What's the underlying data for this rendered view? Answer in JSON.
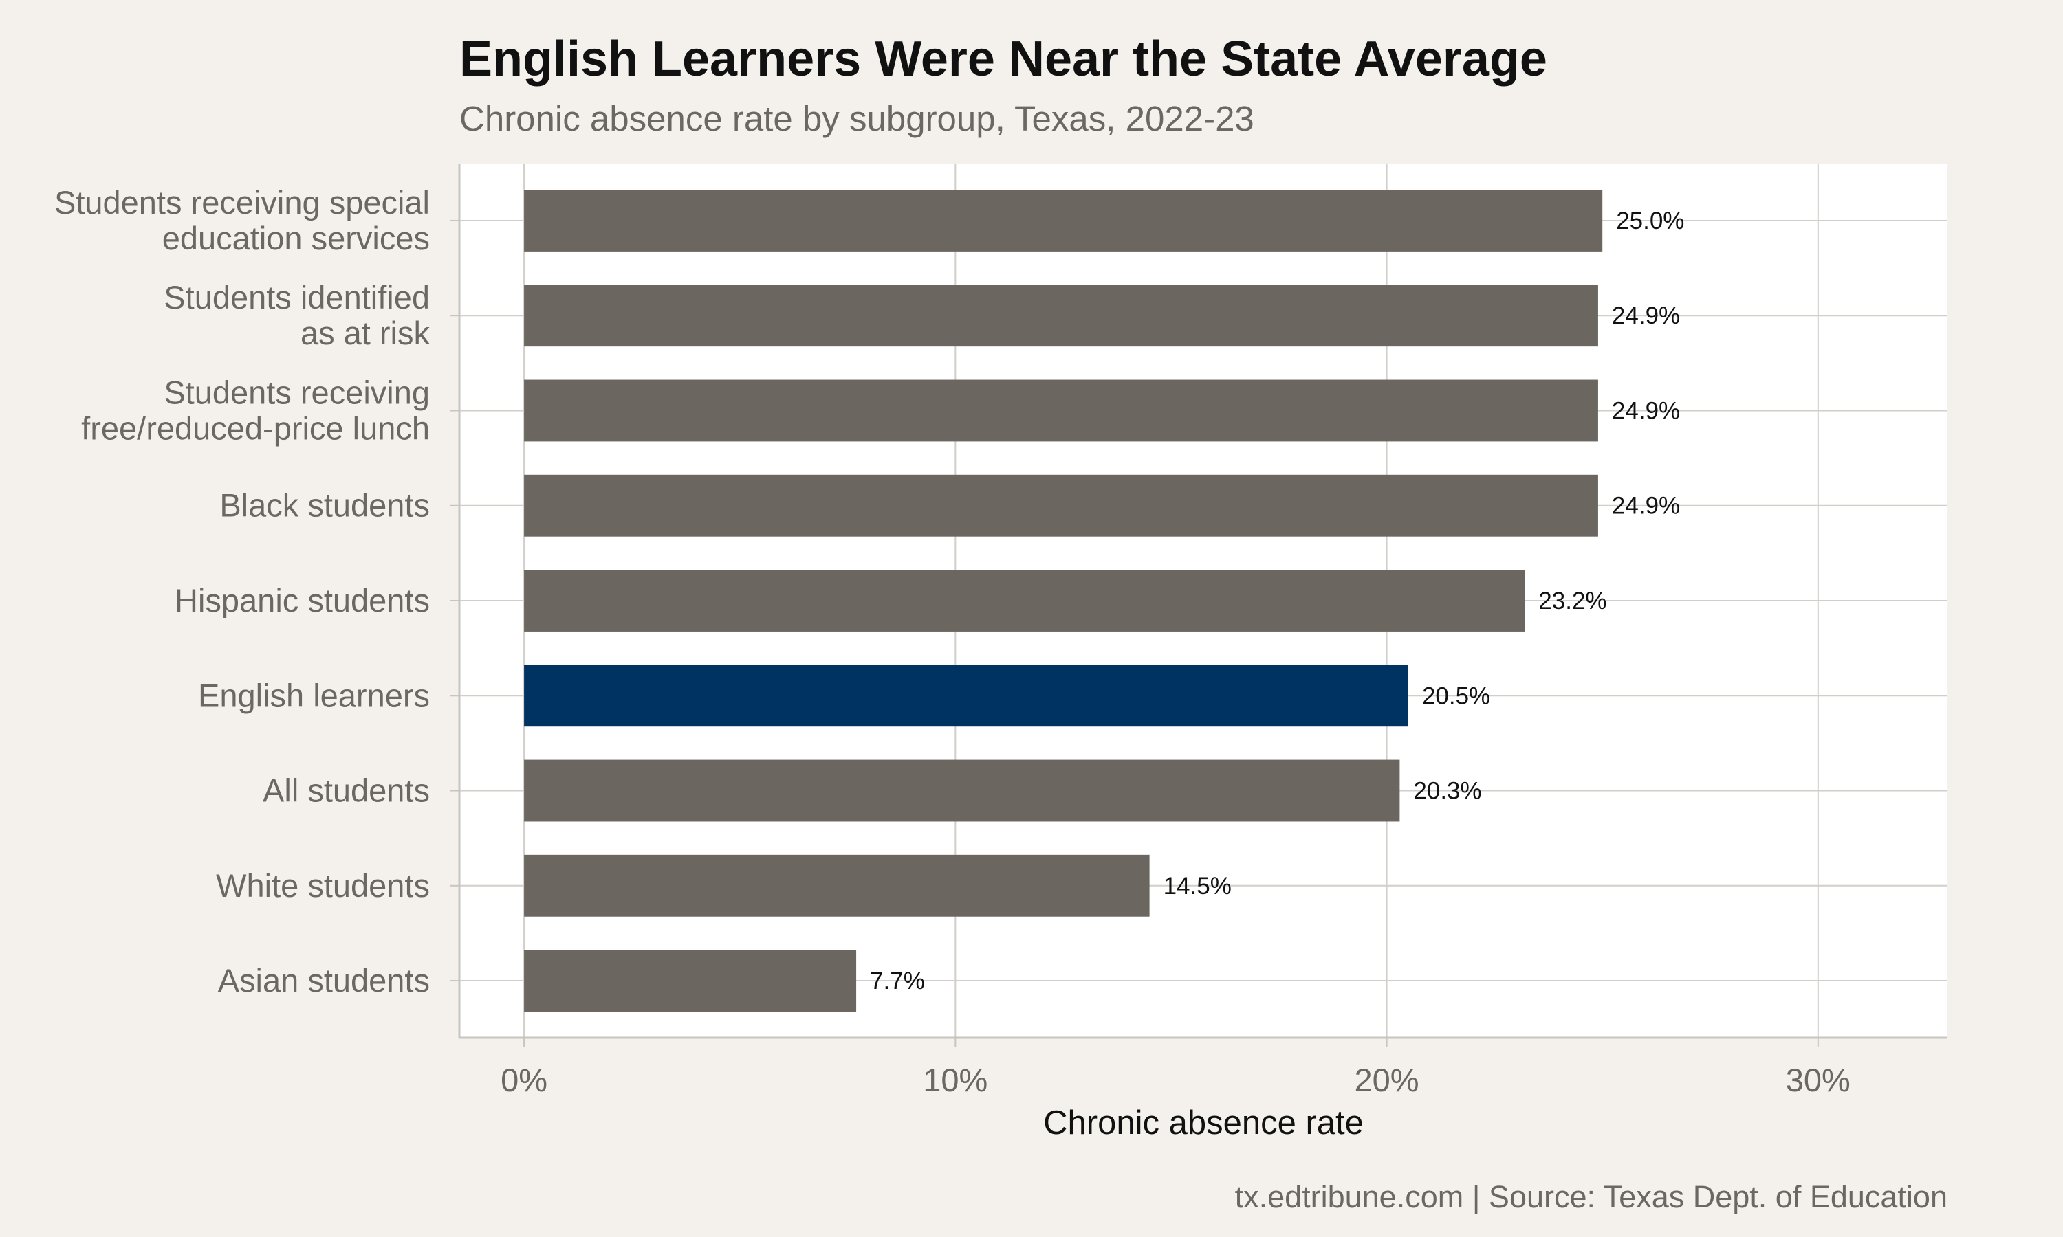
{
  "chart_data": {
    "type": "bar",
    "orientation": "horizontal",
    "title": "English Learners Were Near the State Average",
    "subtitle": "Chronic absence rate by subgroup, Texas, 2022-23",
    "xlabel": "Chronic absence rate",
    "ylabel": "",
    "xlim": [
      -1.5,
      33
    ],
    "x_ticks": [
      0,
      10,
      20,
      30
    ],
    "x_tick_labels": [
      "0%",
      "10%",
      "20%",
      "30%"
    ],
    "grid": true,
    "legend": "none",
    "categories": [
      [
        "Students receiving special",
        "education services"
      ],
      [
        "Students identified",
        "as at risk"
      ],
      [
        "Students receiving",
        "free/reduced-price lunch"
      ],
      [
        "Black students"
      ],
      [
        "Hispanic students"
      ],
      [
        "English learners"
      ],
      [
        "All students"
      ],
      [
        "White students"
      ],
      [
        "Asian students"
      ]
    ],
    "values": [
      25.0,
      24.9,
      24.9,
      24.9,
      23.2,
      20.5,
      20.3,
      14.5,
      7.7
    ],
    "value_labels": [
      "25.0%",
      "24.9%",
      "24.9%",
      "24.9%",
      "23.2%",
      "20.5%",
      "20.3%",
      "14.5%",
      "7.7%"
    ],
    "highlight_index": 5,
    "caption": "tx.edtribune.com | Source: Texas Dept. of Education"
  },
  "colors": {
    "background": "#f4f1ec",
    "panel": "#ffffff",
    "bar": "#6b6660",
    "highlight": "#003262",
    "grid": "#d2cec8",
    "axis": "#c8c4be"
  }
}
